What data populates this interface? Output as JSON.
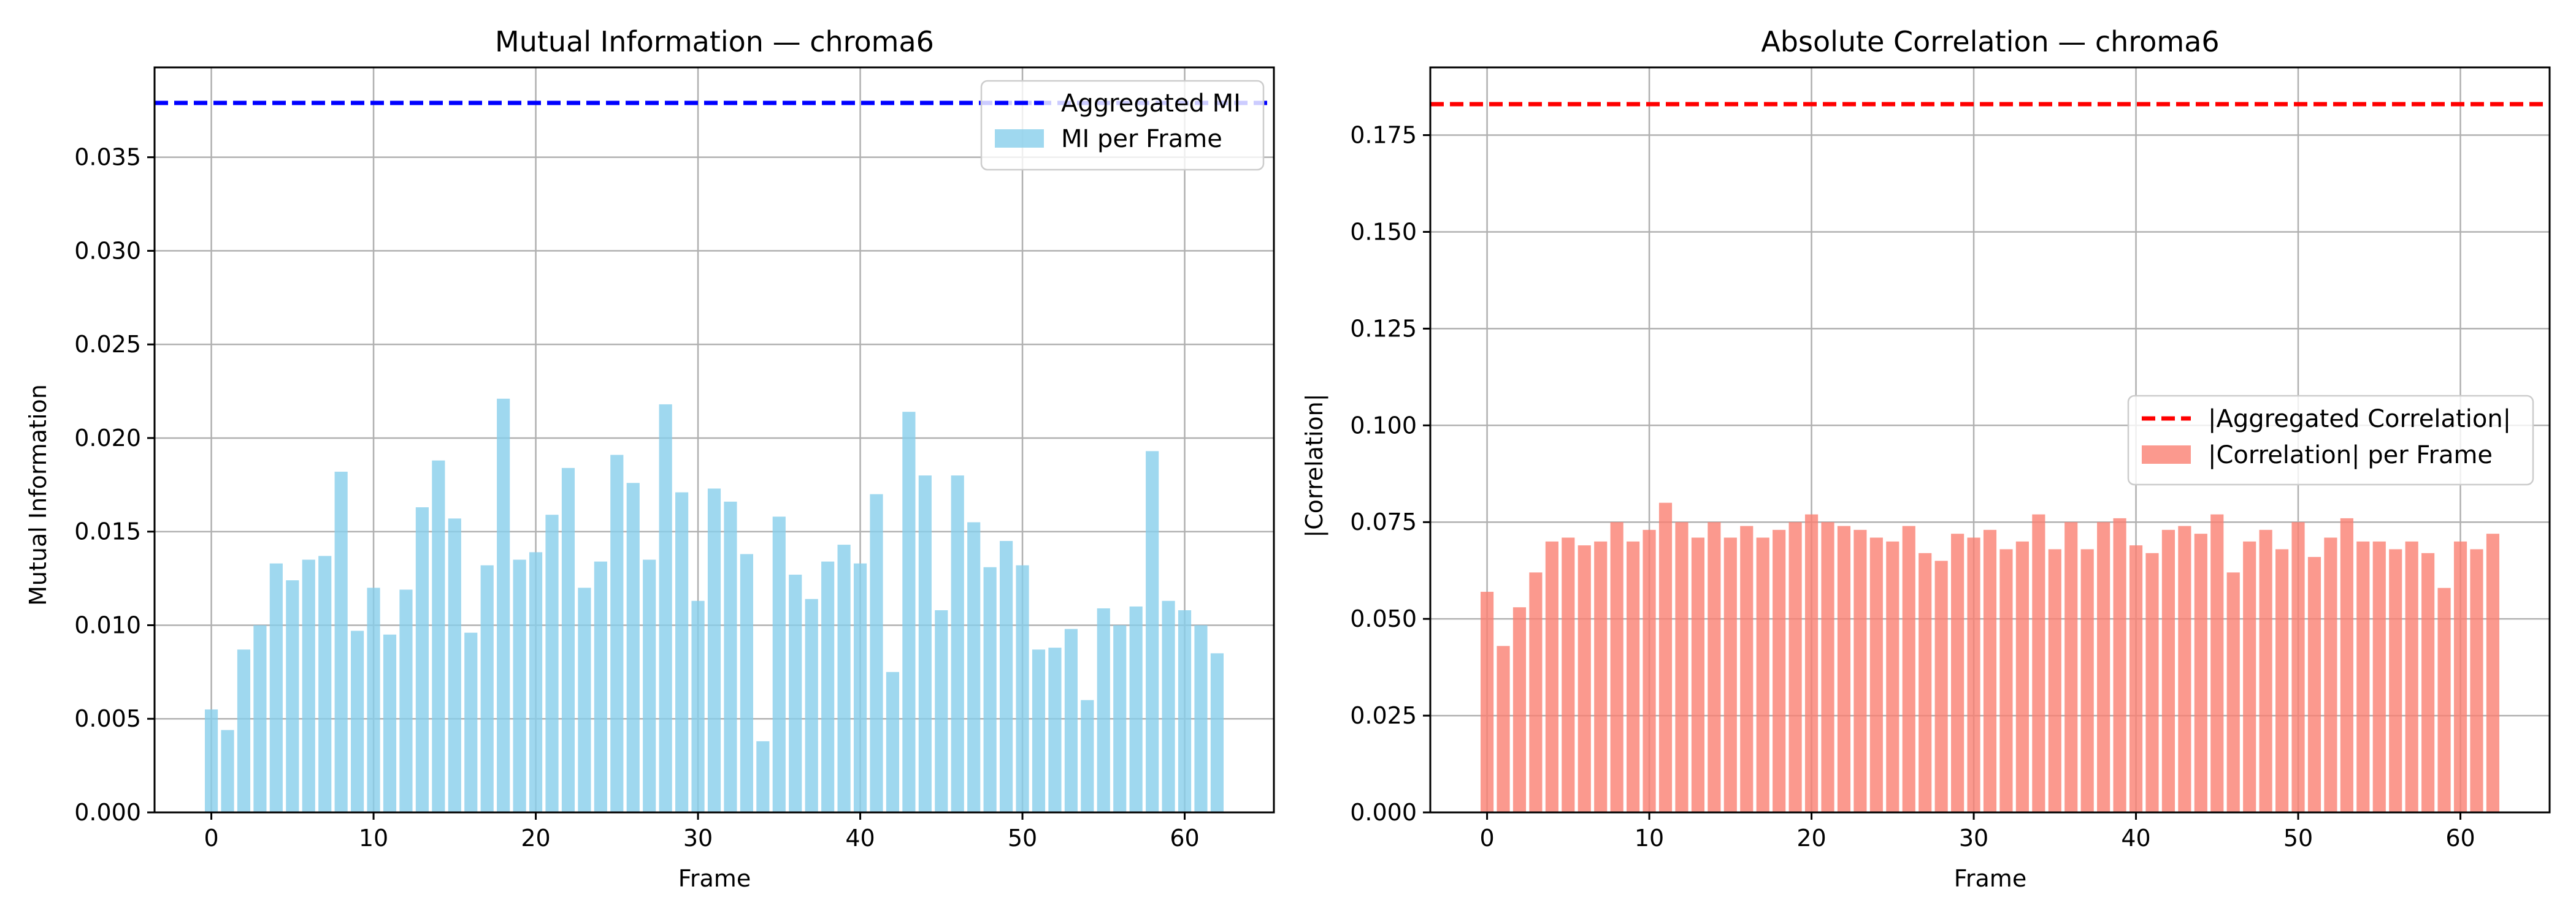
{
  "chart_data": [
    {
      "type": "bar",
      "title": "Mutual Information — chroma6",
      "xlabel": "Frame",
      "ylabel": "Mutual Information",
      "xlim": [
        -3.5,
        65.5
      ],
      "ylim": [
        0,
        0.0398
      ],
      "xticks": [
        0,
        10,
        20,
        30,
        40,
        50,
        60
      ],
      "yticks": [
        0.0,
        0.005,
        0.01,
        0.015,
        0.02,
        0.025,
        0.03,
        0.035
      ],
      "ytick_labels": [
        "0.000",
        "0.005",
        "0.010",
        "0.015",
        "0.020",
        "0.025",
        "0.030",
        "0.035"
      ],
      "grid": true,
      "legend_position": "upper right",
      "bar_color": "#87CEEB",
      "line_color": "#0000ff",
      "series": [
        {
          "name": "MI per Frame",
          "kind": "bar",
          "x": [
            0,
            1,
            2,
            3,
            4,
            5,
            6,
            7,
            8,
            9,
            10,
            11,
            12,
            13,
            14,
            15,
            16,
            17,
            18,
            19,
            20,
            21,
            22,
            23,
            24,
            25,
            26,
            27,
            28,
            29,
            30,
            31,
            32,
            33,
            34,
            35,
            36,
            37,
            38,
            39,
            40,
            41,
            42,
            43,
            44,
            45,
            46,
            47,
            48,
            49,
            50,
            51,
            52,
            53,
            54,
            55,
            56,
            57,
            58,
            59,
            60,
            61,
            62
          ],
          "values": [
            0.0055,
            0.0044,
            0.0087,
            0.01,
            0.0133,
            0.0124,
            0.0135,
            0.0137,
            0.0182,
            0.0097,
            0.012,
            0.0095,
            0.0119,
            0.0163,
            0.0188,
            0.0157,
            0.0096,
            0.0132,
            0.0221,
            0.0135,
            0.0139,
            0.0159,
            0.0184,
            0.012,
            0.0134,
            0.0191,
            0.0176,
            0.0135,
            0.0218,
            0.0171,
            0.0113,
            0.0173,
            0.0166,
            0.0138,
            0.0038,
            0.0158,
            0.0127,
            0.0114,
            0.0134,
            0.0143,
            0.0133,
            0.017,
            0.0075,
            0.0214,
            0.018,
            0.0108,
            0.018,
            0.0155,
            0.0131,
            0.0145,
            0.0132,
            0.0087,
            0.0088,
            0.0098,
            0.006,
            0.0109,
            0.01,
            0.011,
            0.0193,
            0.0113,
            0.0108,
            0.01,
            0.0085
          ]
        },
        {
          "name": "Aggregated MI",
          "kind": "hline",
          "value": 0.0379
        }
      ]
    },
    {
      "type": "bar",
      "title": "Absolute Correlation — chroma6",
      "xlabel": "Frame",
      "ylabel": "|Correlation|",
      "xlim": [
        -3.5,
        65.5
      ],
      "ylim": [
        0,
        0.1925
      ],
      "xticks": [
        0,
        10,
        20,
        30,
        40,
        50,
        60
      ],
      "yticks": [
        0.0,
        0.025,
        0.05,
        0.075,
        0.1,
        0.125,
        0.15,
        0.175
      ],
      "ytick_labels": [
        "0.000",
        "0.025",
        "0.050",
        "0.075",
        "0.100",
        "0.125",
        "0.150",
        "0.175"
      ],
      "grid": true,
      "legend_position": "center right",
      "bar_color": "#FA8072",
      "line_color": "#ff0000",
      "series": [
        {
          "name": "|Correlation| per Frame",
          "kind": "bar",
          "x": [
            0,
            1,
            2,
            3,
            4,
            5,
            6,
            7,
            8,
            9,
            10,
            11,
            12,
            13,
            14,
            15,
            16,
            17,
            18,
            19,
            20,
            21,
            22,
            23,
            24,
            25,
            26,
            27,
            28,
            29,
            30,
            31,
            32,
            33,
            34,
            35,
            36,
            37,
            38,
            39,
            40,
            41,
            42,
            43,
            44,
            45,
            46,
            47,
            48,
            49,
            50,
            51,
            52,
            53,
            54,
            55,
            56,
            57,
            58,
            59,
            60,
            61,
            62
          ],
          "values": [
            0.057,
            0.043,
            0.053,
            0.062,
            0.07,
            0.071,
            0.069,
            0.07,
            0.075,
            0.07,
            0.073,
            0.08,
            0.075,
            0.071,
            0.075,
            0.071,
            0.074,
            0.071,
            0.073,
            0.075,
            0.077,
            0.075,
            0.074,
            0.073,
            0.071,
            0.07,
            0.074,
            0.067,
            0.065,
            0.072,
            0.071,
            0.073,
            0.068,
            0.07,
            0.077,
            0.068,
            0.075,
            0.068,
            0.075,
            0.076,
            0.069,
            0.067,
            0.073,
            0.074,
            0.072,
            0.077,
            0.062,
            0.07,
            0.073,
            0.068,
            0.075,
            0.066,
            0.071,
            0.076,
            0.07,
            0.07,
            0.068,
            0.07,
            0.067,
            0.058,
            0.07,
            0.068,
            0.072
          ]
        },
        {
          "name": "|Aggregated Correlation|",
          "kind": "hline",
          "value": 0.183
        }
      ]
    }
  ]
}
